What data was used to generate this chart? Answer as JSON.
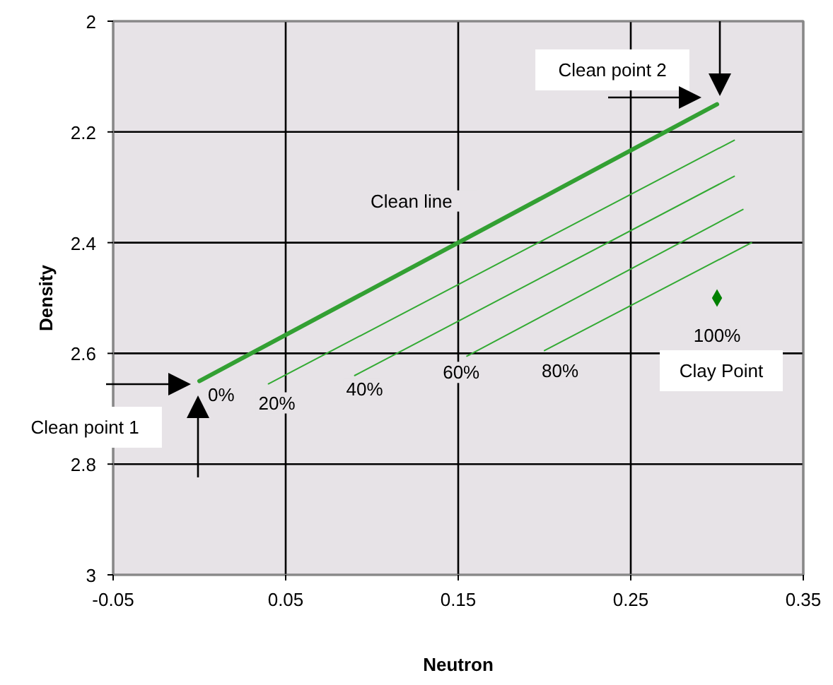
{
  "chart_data": {
    "type": "line",
    "xlabel": "Neutron",
    "ylabel": "Density",
    "xlim": [
      -0.05,
      0.35
    ],
    "xticks": [
      -0.05,
      0.05,
      0.15,
      0.25,
      0.35
    ],
    "ylim": [
      3,
      2
    ],
    "yticks": [
      2,
      2.2,
      2.4,
      2.6,
      2.8,
      3
    ],
    "grid": true,
    "line_style": "solid",
    "series": [
      {
        "color": "#33a033",
        "x": [
          0,
          0.3
        ],
        "values": [
          2.65,
          2.15
        ]
      },
      {
        "color": "#33aa33",
        "x": [
          0.04,
          0.31
        ],
        "values": [
          2.655,
          2.215
        ]
      },
      {
        "color": "#33aa33",
        "x": [
          0.09,
          0.31
        ],
        "values": [
          2.64,
          2.28
        ]
      },
      {
        "color": "#33aa33",
        "x": [
          0.155,
          0.315
        ],
        "values": [
          2.605,
          2.34
        ]
      },
      {
        "color": "#33aa33",
        "x": [
          0.2,
          0.32
        ],
        "values": [
          2.595,
          2.4
        ]
      },
      {
        "type": "scatter",
        "marker": "diamond",
        "color": "#008000",
        "x": [
          0.3
        ],
        "values": [
          2.5
        ]
      }
    ],
    "annotations": [
      "Clean point 1",
      "Clean point 2",
      {
        "text": "Clean line",
        "x": 0.15,
        "y": 2.4
      },
      {
        "text": "0%",
        "x": 0,
        "y": 2.65
      },
      {
        "text": "20%",
        "x": 0.04,
        "y": 2.655
      },
      {
        "text": "40%",
        "x": 0.09,
        "y": 2.64
      },
      {
        "text": "60%",
        "x": 0.155,
        "y": 2.605
      },
      {
        "text": "80%",
        "x": 0.2,
        "y": 2.595
      },
      {
        "text": "100%",
        "x": 0.3,
        "y": 2.5
      },
      "Clay Point"
    ]
  }
}
